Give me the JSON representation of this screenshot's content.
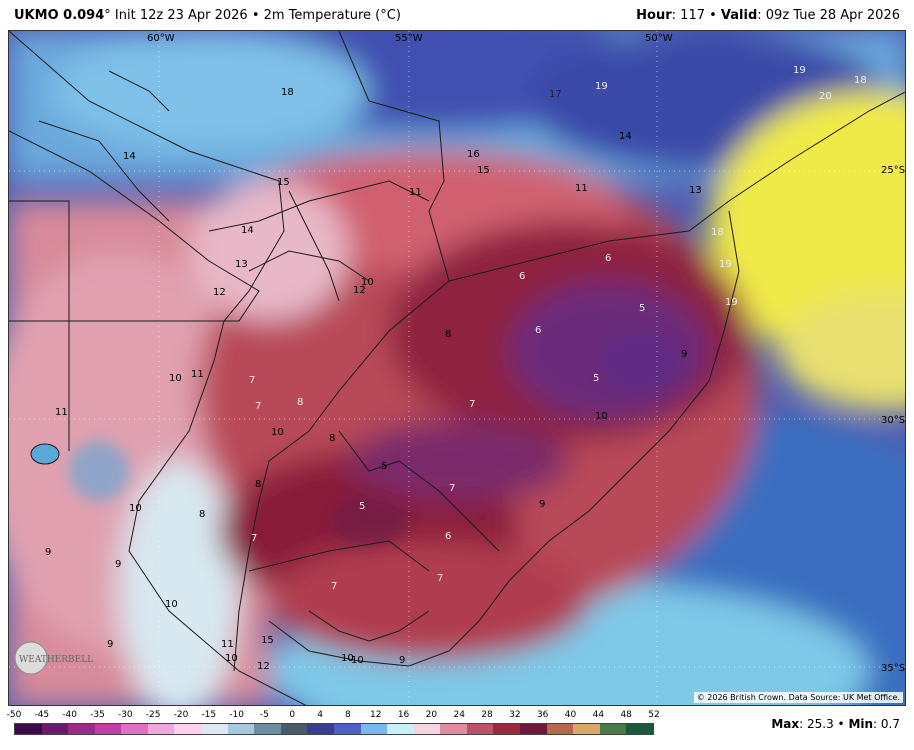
{
  "header": {
    "model": "UKMO 0.094",
    "model_unit": "°",
    "init": "Init 12z 23 Apr 2026 • 2m Temperature (°C)",
    "hour_label": "Hour",
    "hour_value": ": 117 • ",
    "valid_label": "Valid",
    "valid_value": ": 09z Tue 28 Apr 2026"
  },
  "map": {
    "longitudes": [
      "60°W",
      "55°W",
      "50°W"
    ],
    "latitudes": [
      "25°S",
      "30°S",
      "35°S"
    ],
    "credit": "© 2026 British Crown. Data Source: UK Met Office.",
    "logo_text": "WEATHERBELL",
    "temperature_labels": [
      "18",
      "14",
      "17",
      "19",
      "19",
      "20",
      "18",
      "16",
      "15",
      "14",
      "15",
      "11",
      "11",
      "13",
      "14",
      "18",
      "19",
      "19",
      "13",
      "12",
      "10",
      "12",
      "6",
      "6",
      "8",
      "6",
      "5",
      "5",
      "9",
      "10",
      "11",
      "7",
      "7",
      "8",
      "11",
      "7",
      "10",
      "10",
      "8",
      "5",
      "7",
      "8",
      "10",
      "5",
      "9",
      "7",
      "6",
      "8",
      "9",
      "9",
      "7",
      "7",
      "10",
      "11",
      "15",
      "10",
      "12",
      "10",
      "9",
      "10",
      "9"
    ]
  },
  "colorbar": {
    "ticks": [
      "-50",
      "-45",
      "-40",
      "-35",
      "-30",
      "-25",
      "-20",
      "-15",
      "-10",
      "-5",
      "0",
      "4",
      "8",
      "12",
      "16",
      "20",
      "24",
      "28",
      "32",
      "36",
      "40",
      "44",
      "48",
      "52"
    ],
    "colors": [
      "#3b0a4a",
      "#6a1b6e",
      "#9a2a8c",
      "#c43ca6",
      "#e06ec4",
      "#f0a8dc",
      "#ffd0ee",
      "#e0e8f4",
      "#a8c8e0",
      "#6e8fa0",
      "#4a5a6a",
      "#3a3f8c",
      "#4f5fc8",
      "#7ab8ec",
      "#c8f0f8",
      "#f4d4e0",
      "#e08ca0",
      "#c0506a",
      "#9a2a3c",
      "#6a1a3a",
      "#b46a4a",
      "#d8a86a",
      "#4a7a4a",
      "#1a5a3a"
    ]
  },
  "stats": {
    "max_label": "Max",
    "max_value": ": 25.3 • ",
    "min_label": "Min",
    "min_value": ": 0.7"
  }
}
